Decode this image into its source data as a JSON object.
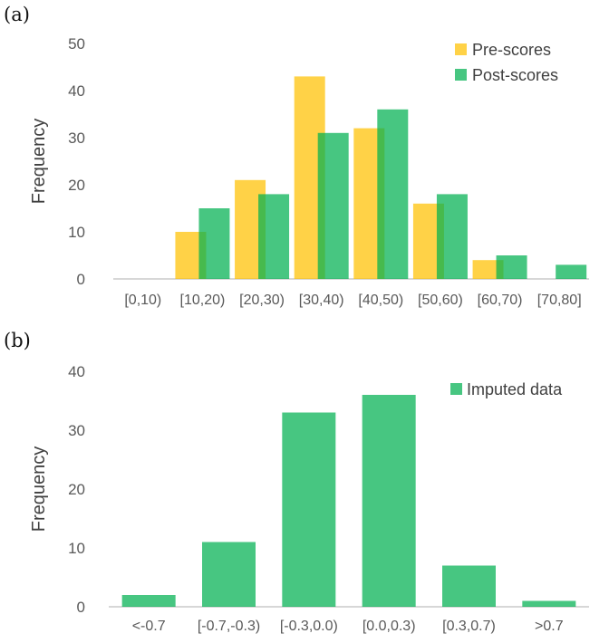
{
  "panels": {
    "a_label": "(a)",
    "b_label": "(b)"
  },
  "colors": {
    "pre": "#FFC000",
    "post": "#00B050",
    "imputed": "#00B050",
    "axis": "#BFBFBF",
    "text": "#595959"
  },
  "chart_data": [
    {
      "type": "bar",
      "categories": [
        "[0,10)",
        "[10,20)",
        "[20,30)",
        "[30,40)",
        "[40,50)",
        "[50,60)",
        "[60,70)",
        "[70,80]"
      ],
      "series": [
        {
          "name": "Pre-scores",
          "values": [
            0,
            10,
            21,
            43,
            32,
            16,
            4,
            0
          ]
        },
        {
          "name": "Post-scores",
          "values": [
            0,
            15,
            18,
            31,
            36,
            18,
            5,
            3
          ]
        }
      ],
      "title": "",
      "xlabel": "",
      "ylabel": "Frequency",
      "ylim": [
        0,
        50
      ],
      "yticks": [
        0,
        10,
        20,
        30,
        40,
        50
      ],
      "grid": false,
      "legend": "top-right"
    },
    {
      "type": "bar",
      "categories": [
        "<-0.7",
        "[-0.7,-0.3)",
        "[-0.3,0.0)",
        "[0.0,0.3)",
        "[0.3,0.7)",
        ">0.7"
      ],
      "series": [
        {
          "name": "Imputed data",
          "values": [
            2,
            11,
            33,
            36,
            7,
            1
          ]
        }
      ],
      "title": "",
      "xlabel": "",
      "ylabel": "Frequency",
      "ylim": [
        0,
        40
      ],
      "yticks": [
        0,
        10,
        20,
        30,
        40
      ],
      "grid": false,
      "legend": "top-right"
    }
  ]
}
